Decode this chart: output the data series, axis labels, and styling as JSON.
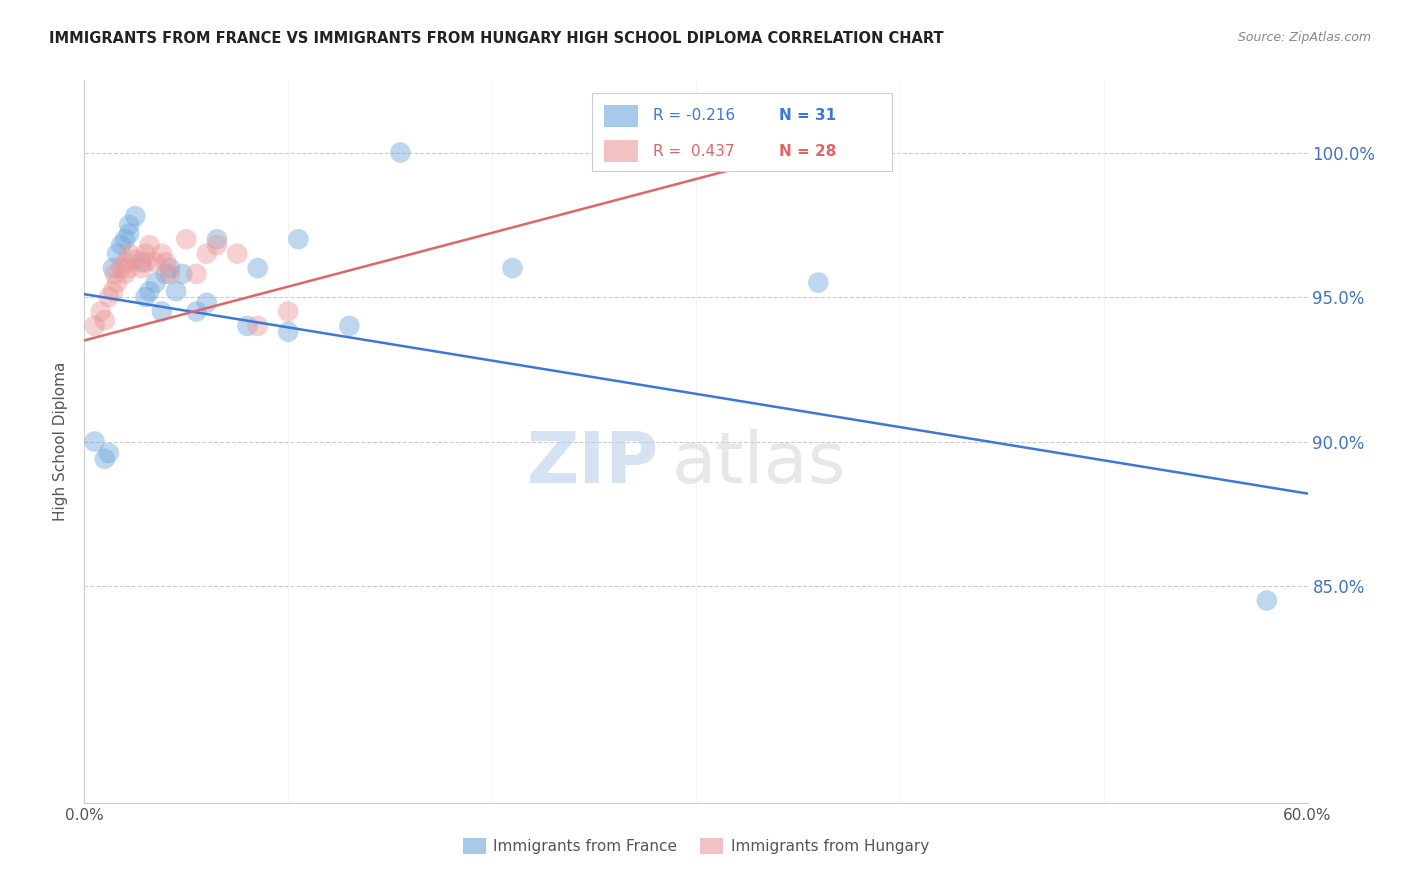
{
  "title": "IMMIGRANTS FROM FRANCE VS IMMIGRANTS FROM HUNGARY HIGH SCHOOL DIPLOMA CORRELATION CHART",
  "source": "Source: ZipAtlas.com",
  "ylabel": "High School Diploma",
  "ytick_labels": [
    "85.0%",
    "90.0%",
    "95.0%",
    "100.0%"
  ],
  "ytick_values": [
    0.85,
    0.9,
    0.95,
    1.0
  ],
  "xlim": [
    0.0,
    0.6
  ],
  "ylim": [
    0.775,
    1.025
  ],
  "legend_blue_r": "-0.216",
  "legend_blue_n": "31",
  "legend_pink_r": "0.437",
  "legend_pink_n": "28",
  "legend_blue_label": "Immigrants from France",
  "legend_pink_label": "Immigrants from Hungary",
  "blue_color": "#6fa8dc",
  "pink_color": "#ea9999",
  "blue_line_color": "#3c78d8",
  "pink_line_color": "#e06666",
  "watermark_zip": "ZIP",
  "watermark_atlas": "atlas",
  "france_x": [
    0.005,
    0.01,
    0.012,
    0.014,
    0.016,
    0.018,
    0.02,
    0.022,
    0.022,
    0.025,
    0.028,
    0.03,
    0.032,
    0.035,
    0.038,
    0.04,
    0.042,
    0.045,
    0.048,
    0.055,
    0.06,
    0.065,
    0.08,
    0.085,
    0.1,
    0.105,
    0.13,
    0.155,
    0.21,
    0.36,
    0.58
  ],
  "france_y": [
    0.9,
    0.894,
    0.896,
    0.96,
    0.965,
    0.968,
    0.97,
    0.972,
    0.975,
    0.978,
    0.962,
    0.95,
    0.952,
    0.955,
    0.945,
    0.958,
    0.96,
    0.952,
    0.958,
    0.945,
    0.948,
    0.97,
    0.94,
    0.96,
    0.938,
    0.97,
    0.94,
    1.0,
    0.96,
    0.955,
    0.845
  ],
  "hungary_x": [
    0.005,
    0.008,
    0.01,
    0.012,
    0.014,
    0.015,
    0.016,
    0.018,
    0.02,
    0.02,
    0.022,
    0.022,
    0.025,
    0.028,
    0.03,
    0.03,
    0.032,
    0.035,
    0.038,
    0.04,
    0.042,
    0.05,
    0.055,
    0.06,
    0.065,
    0.075,
    0.085,
    0.1
  ],
  "hungary_y": [
    0.94,
    0.945,
    0.942,
    0.95,
    0.952,
    0.958,
    0.955,
    0.96,
    0.958,
    0.962,
    0.965,
    0.96,
    0.963,
    0.96,
    0.962,
    0.965,
    0.968,
    0.962,
    0.965,
    0.962,
    0.958,
    0.97,
    0.958,
    0.965,
    0.968,
    0.965,
    0.94,
    0.945
  ],
  "blue_trend_x": [
    0.0,
    0.6
  ],
  "blue_trend_y": [
    0.951,
    0.882
  ],
  "pink_trend_x": [
    0.0,
    0.36
  ],
  "pink_trend_y": [
    0.935,
    1.002
  ]
}
